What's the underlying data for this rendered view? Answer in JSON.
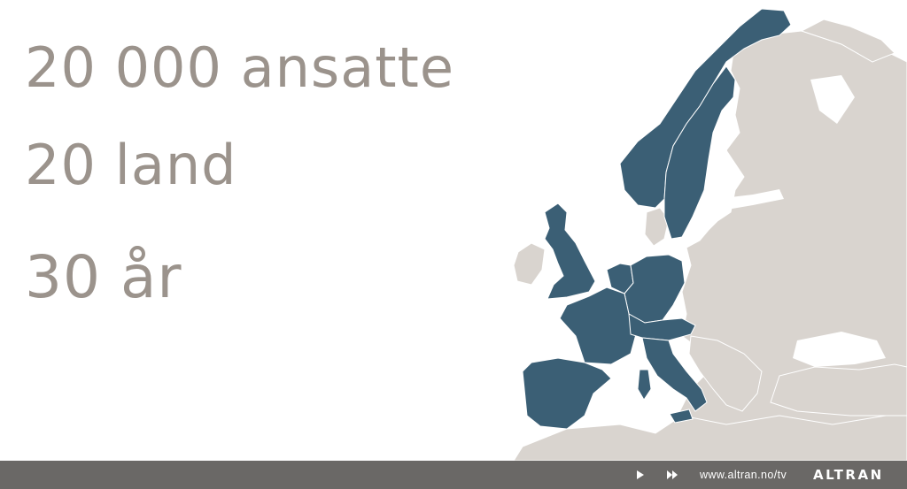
{
  "stats": [
    {
      "text": "20 000 ansatte"
    },
    {
      "text": "20 land"
    },
    {
      "text": "30 år"
    }
  ],
  "map": {
    "highlight_color": "#3b5f75",
    "land_color": "#d9d4cf",
    "border_color": "#ffffff",
    "highlighted_regions": [
      "norway",
      "sweden",
      "united-kingdom",
      "france",
      "spain",
      "portugal",
      "italy",
      "germany",
      "benelux",
      "switzerland",
      "austria"
    ]
  },
  "player": {
    "play_icon": "play-icon",
    "ff_icon": "fast-forward-icon",
    "url": "www.altran.no/tv",
    "logo": "ALTRAN",
    "bar_color": "#6a6866"
  }
}
